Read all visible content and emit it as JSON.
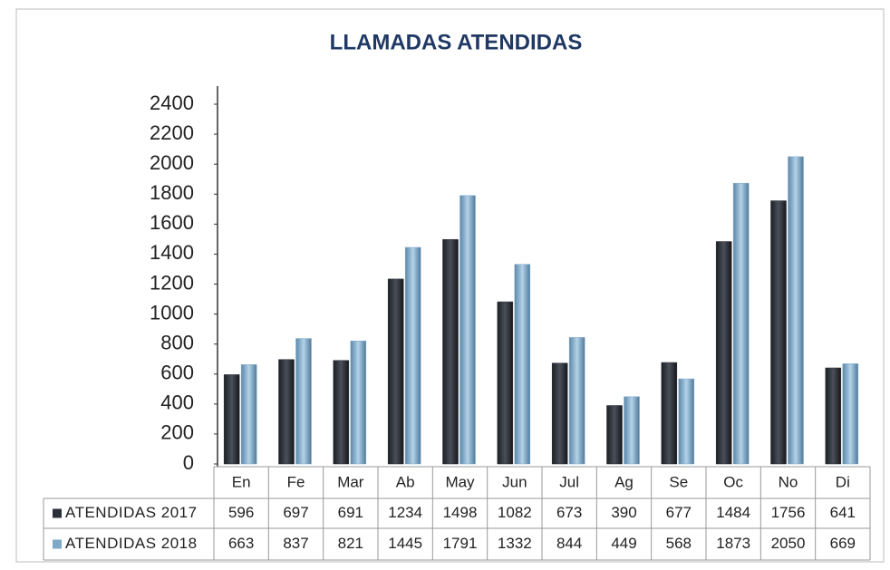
{
  "chart_data": {
    "type": "bar",
    "title": "LLAMADAS ATENDIDAS",
    "categories": [
      "En",
      "Fe",
      "Mar",
      "Ab",
      "May",
      "Jun",
      "Jul",
      "Ag",
      "Se",
      "Oc",
      "No",
      "Di"
    ],
    "series": [
      {
        "name": "ATENDIDAS 2017",
        "color": "#2b2f37",
        "values": [
          596,
          697,
          691,
          1234,
          1498,
          1082,
          673,
          390,
          677,
          1484,
          1756,
          641
        ]
      },
      {
        "name": "ATENDIDAS 2018",
        "color": "#7fa9c9",
        "values": [
          663,
          837,
          821,
          1445,
          1791,
          1332,
          844,
          449,
          568,
          1873,
          2050,
          669
        ]
      }
    ],
    "ylim": [
      0,
      2400
    ],
    "yticks": [
      0,
      200,
      400,
      600,
      800,
      1000,
      1200,
      1400,
      1600,
      1800,
      2000,
      2200,
      2400
    ],
    "grid": false
  }
}
